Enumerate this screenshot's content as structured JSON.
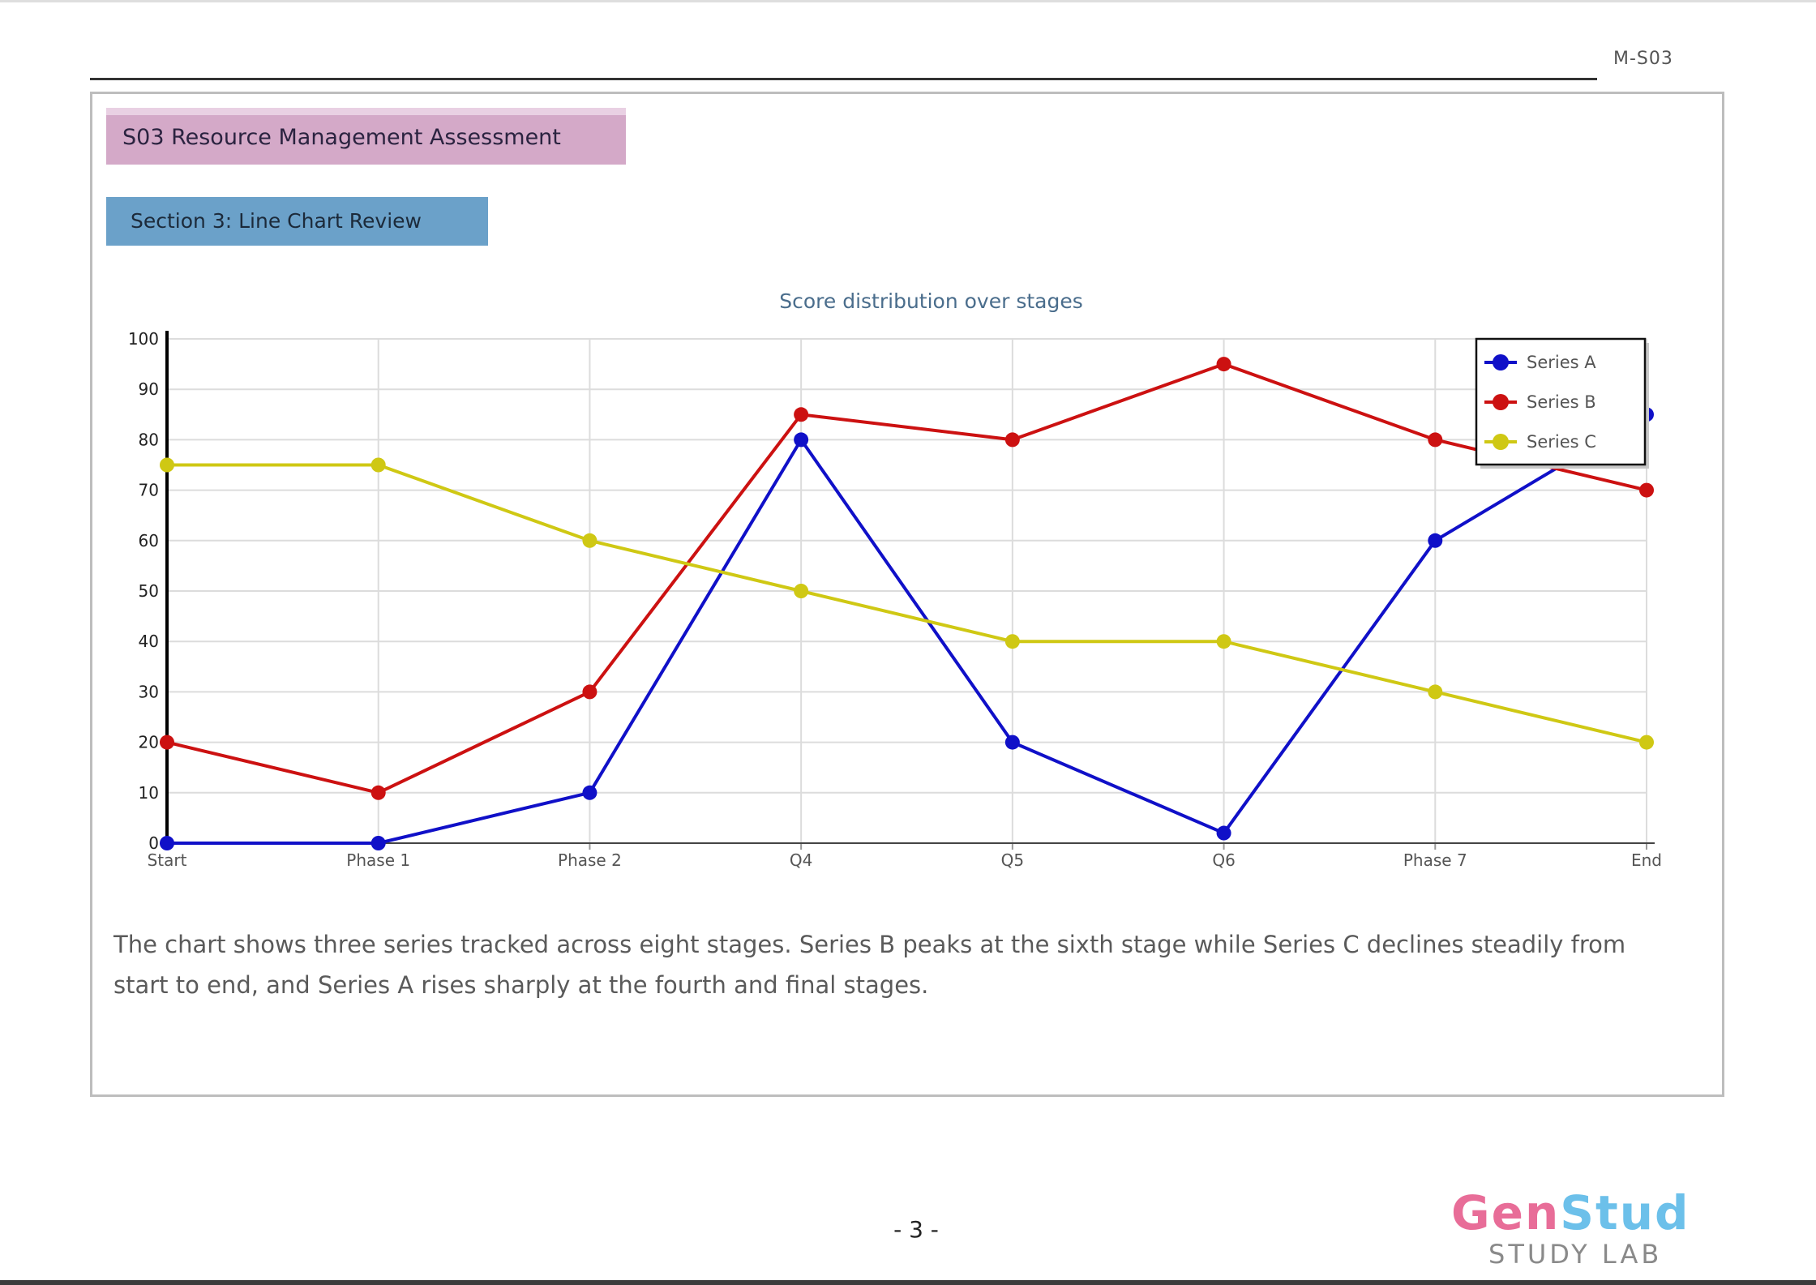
{
  "header": {
    "id_label": "M-S03"
  },
  "category_banner": {
    "text": "S03 Resource Management Assessment"
  },
  "sub_banner": {
    "text": "Section 3: Line Chart Review"
  },
  "chart_data": {
    "type": "line",
    "title": "Score distribution over stages",
    "xlabel": "",
    "ylabel": "",
    "categories": [
      "Start",
      "Phase 1",
      "Phase 2",
      "Q4",
      "Q5",
      "Q6",
      "Phase 7",
      "End"
    ],
    "ylim": [
      0,
      100
    ],
    "yticks": [
      0,
      10,
      20,
      30,
      40,
      50,
      60,
      70,
      80,
      90,
      100
    ],
    "grid": true,
    "legend_position": "top-right",
    "series": [
      {
        "name": "Series A",
        "color": "#1010c8",
        "values": [
          0,
          0,
          10,
          80,
          20,
          2,
          60,
          85
        ]
      },
      {
        "name": "Series B",
        "color": "#cc1111",
        "values": [
          20,
          10,
          30,
          85,
          80,
          95,
          80,
          70
        ]
      },
      {
        "name": "Series C",
        "color": "#cfc814",
        "values": [
          75,
          75,
          60,
          50,
          40,
          40,
          30,
          20
        ]
      }
    ]
  },
  "description": {
    "text": "The chart shows three series tracked across eight stages. Series B peaks at the sixth stage while Series C declines steadily from start to end, and Series A rises sharply at the fourth and final stages."
  },
  "footer": {
    "page_number": "- 3 -",
    "brand_part1": "Gen",
    "brand_part2": "Stud",
    "brand_sub": "STUDY LAB"
  }
}
